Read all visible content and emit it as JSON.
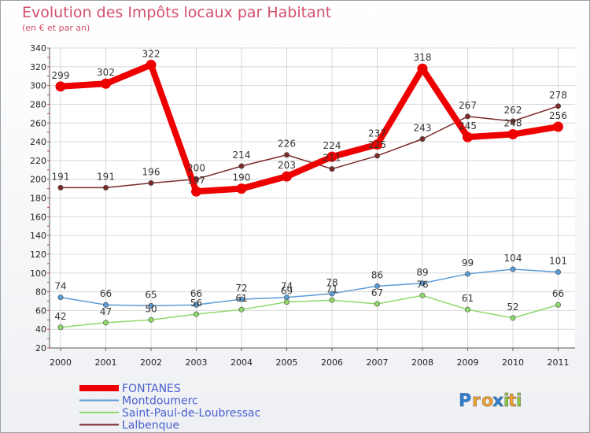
{
  "header": {
    "title": "Evolution des Impôts locaux par Habitant",
    "subtitle": "(en € et par an)"
  },
  "logo": {
    "text": "Proxiti"
  },
  "chart_data": {
    "type": "line",
    "title": "Evolution des Impôts locaux par Habitant",
    "subtitle": "(en € et par an)",
    "x": [
      "2000",
      "2001",
      "2002",
      "2003",
      "2004",
      "2005",
      "2006",
      "2007",
      "2008",
      "2009",
      "2010",
      "2011"
    ],
    "yticks": [
      "20",
      "40",
      "60",
      "80",
      "100",
      "120",
      "140",
      "160",
      "180",
      "200",
      "220",
      "240",
      "260",
      "280",
      "300",
      "320",
      "340"
    ],
    "ylim": [
      20,
      340
    ],
    "grid": true,
    "legend_position": "bottom-left",
    "series": [
      {
        "name": "FONTANES",
        "color": "#ee0000",
        "values": [
          299,
          302,
          322,
          187,
          190,
          203,
          224,
          237,
          318,
          245,
          248,
          256
        ],
        "labels": [
          "299",
          "302",
          "322",
          "187",
          "190",
          "203",
          "224",
          "237",
          "318",
          "245",
          "248",
          "256"
        ]
      },
      {
        "name": "Montdoumerc",
        "color": "#5b9bd5",
        "values": [
          74,
          66,
          65,
          66,
          72,
          74,
          78,
          86,
          89,
          99,
          104,
          101
        ],
        "labels": [
          "74",
          "66",
          "65",
          "66",
          "72",
          "74",
          "78",
          "86",
          "89",
          "99",
          "104",
          "101"
        ]
      },
      {
        "name": "Saint-Paul-de-Loubressac",
        "color": "#8fd86b",
        "values": [
          42,
          47,
          50,
          56,
          61,
          69,
          71,
          67,
          76,
          61,
          52,
          66
        ],
        "labels": [
          "42",
          "47",
          "50",
          "56",
          "61",
          "69",
          "71",
          "67",
          "76",
          "61",
          "52",
          "66"
        ]
      },
      {
        "name": "Lalbenque",
        "color": "#7b2a2a",
        "values": [
          191,
          191,
          196,
          200,
          214,
          226,
          211,
          225,
          243,
          267,
          262,
          278
        ],
        "labels": [
          "191",
          "191",
          "196",
          "200",
          "214",
          "226",
          "211",
          "225",
          "243",
          "267",
          "262",
          "278"
        ]
      }
    ]
  }
}
